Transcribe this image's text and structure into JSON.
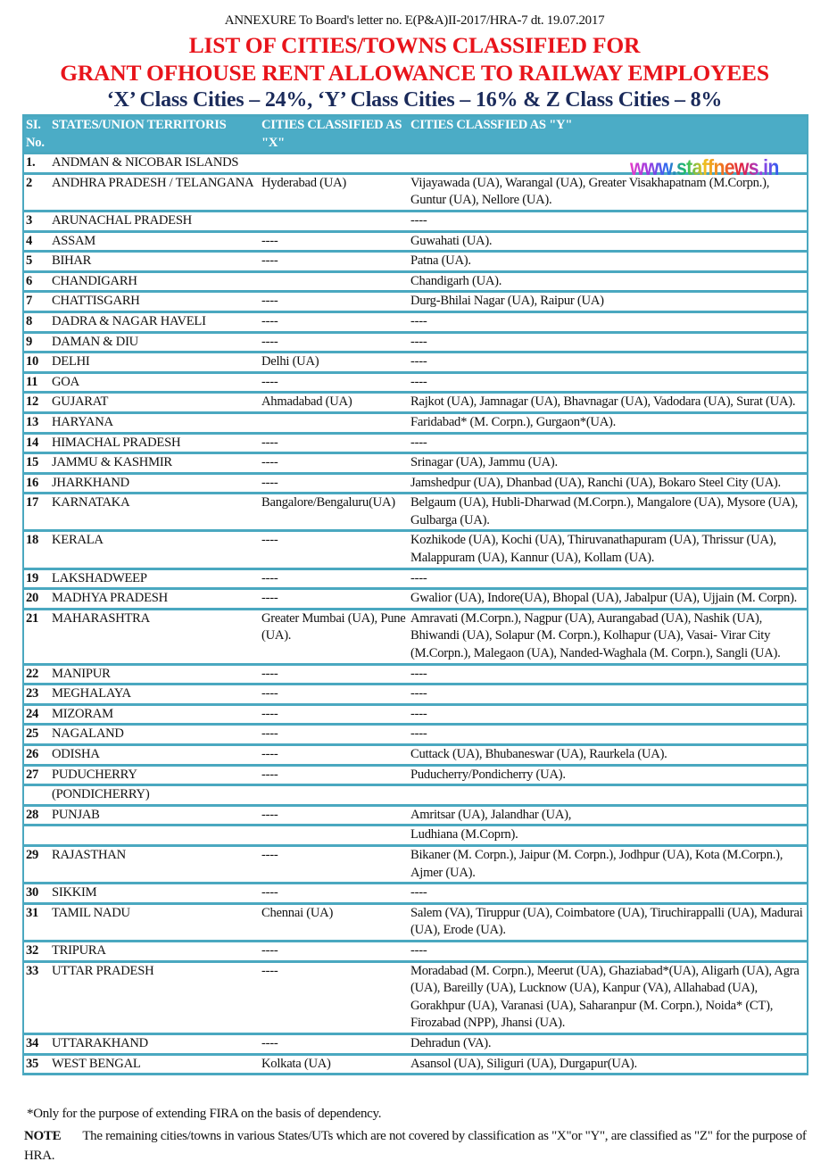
{
  "header": {
    "annexure": "ANNEXURE To Board's letter no. E(P&A)II-2017/HRA-7 dt. 19.07.2017",
    "title_line1": "LIST OF CITIES/TOWNS CLASSIFIED FOR",
    "title_line2": "GRANT OFHOUSE RENT ALLOWANCE TO RAILWAY EMPLOYEES",
    "subtitle": "‘X’ Class Cities – 24%, ‘Y’ Class Cities – 16% & Z Class Cities – 8%"
  },
  "watermark": "www.staffnews.in",
  "table": {
    "columns": [
      "SI. No.",
      "STATES/UNION TERRITORIS",
      "CITIES CLASSIFIED AS \"X\"",
      "CITIES CLASSFIED AS \"Y\""
    ],
    "rows": [
      {
        "no": "1.",
        "state": "ANDMAN & NICOBAR ISLANDS",
        "x": "",
        "y": ""
      },
      {
        "no": "2",
        "state": "ANDHRA PRADESH / TELANGANA",
        "x": "Hyderabad (UA)",
        "y": "Vijayawada (UA), Warangal (UA), Greater Visakhapatnam (M.Corpn.), Guntur (UA), Nellore (UA)."
      },
      {
        "no": "3",
        "state": "ARUNACHAL PRADESH",
        "x": "",
        "y": "----"
      },
      {
        "no": "4",
        "state": "ASSAM",
        "x": "----",
        "y": "Guwahati (UA)."
      },
      {
        "no": "5",
        "state": "BIHAR",
        "x": "----",
        "y": "Patna (UA)."
      },
      {
        "no": "6",
        "state": "CHANDIGARH",
        "x": "",
        "y": "Chandigarh (UA)."
      },
      {
        "no": "7",
        "state": "CHATTISGARH",
        "x": "----",
        "y": "Durg-Bhilai Nagar (UA), Raipur (UA)"
      },
      {
        "no": "8",
        "state": "DADRA & NAGAR HAVELI",
        "x": "----",
        "y": "----"
      },
      {
        "no": "9",
        "state": "DAMAN & DIU",
        "x": "----",
        "y": "----"
      },
      {
        "no": "10",
        "state": "DELHI",
        "x": "Delhi (UA)",
        "y": "----"
      },
      {
        "no": "11",
        "state": "GOA",
        "x": "----",
        "y": "----"
      },
      {
        "no": "12",
        "state": "GUJARAT",
        "x": "Ahmadabad (UA)",
        "y": "Rajkot (UA), Jamnagar (UA), Bhavnagar (UA), Vadodara (UA), Surat (UA)."
      },
      {
        "no": "13",
        "state": "HARYANA",
        "x": "",
        "y": "Faridabad* (M. Corpn.), Gurgaon*(UA)."
      },
      {
        "no": "14",
        "state": "HIMACHAL PRADESH",
        "x": "----",
        "y": "----"
      },
      {
        "no": "15",
        "state": "JAMMU & KASHMIR",
        "x": "----",
        "y": "Srinagar (UA), Jammu (UA)."
      },
      {
        "no": "16",
        "state": "JHARKHAND",
        "x": "----",
        "y": "Jamshedpur (UA), Dhanbad (UA), Ranchi (UA), Bokaro Steel City (UA)."
      },
      {
        "no": "17",
        "state": "KARNATAKA",
        "x": "Bangalore/Bengaluru(UA)",
        "y": "Belgaum (UA), Hubli-Dharwad (M.Corpn.), Mangalore (UA), Mysore (UA), Gulbarga (UA)."
      },
      {
        "no": "18",
        "state": "KERALA",
        "x": "----",
        "y": "Kozhikode (UA), Kochi (UA), Thiruvanathapuram (UA), Thrissur (UA), Malappuram (UA), Kannur (UA), Kollam (UA)."
      },
      {
        "no": "19",
        "state": "LAKSHADWEEP",
        "x": "----",
        "y": "----"
      },
      {
        "no": "20",
        "state": "MADHYA PRADESH",
        "x": "----",
        "y": "Gwalior (UA), Indore(UA), Bhopal (UA), Jabalpur (UA), Ujjain (M. Corpn)."
      },
      {
        "no": "21",
        "state": "MAHARASHTRA",
        "x": "Greater Mumbai (UA), Pune (UA).",
        "y": "Amravati (M.Corpn.), Nagpur (UA), Aurangabad (UA), Nashik (UA), Bhiwandi (UA), Solapur (M. Corpn.), Kolhapur (UA), Vasai- Virar City (M.Corpn.), Malegaon (UA), Nanded-Waghala (M. Corpn.), Sangli (UA)."
      },
      {
        "no": "22",
        "state": "MANIPUR",
        "x": "----",
        "y": "----"
      },
      {
        "no": "23",
        "state": "MEGHALAYA",
        "x": "----",
        "y": "----"
      },
      {
        "no": "24",
        "state": "MIZORAM",
        "x": "----",
        "y": "----"
      },
      {
        "no": "25",
        "state": "NAGALAND",
        "x": "----",
        "y": "----"
      },
      {
        "no": "26",
        "state": "ODISHA",
        "x": "----",
        "y": "Cuttack (UA), Bhubaneswar (UA), Raurkela (UA)."
      },
      {
        "no": "27",
        "state": "PUDUCHERRY",
        "x": "----",
        "y": "Puducherry/Pondicherry (UA)."
      },
      {
        "no": "",
        "state": "(PONDICHERRY)",
        "x": "",
        "y": ""
      },
      {
        "no": "28",
        "state": "PUNJAB",
        "x": "----",
        "y": "Amritsar (UA), Jalandhar (UA),"
      },
      {
        "no": "",
        "state": "",
        "x": "",
        "y": "Ludhiana (M.Coprn)."
      },
      {
        "no": "29",
        "state": "RAJASTHAN",
        "x": "----",
        "y": "Bikaner (M. Corpn.), Jaipur (M. Corpn.), Jodhpur (UA), Kota (M.Corpn.), Ajmer (UA)."
      },
      {
        "no": "30",
        "state": "SIKKIM",
        "x": "----",
        "y": "----"
      },
      {
        "no": "31",
        "state": "TAMIL NADU",
        "x": "Chennai (UA)",
        "y": "Salem (VA), Tiruppur (UA), Coimbatore (UA), Tiruchirappalli (UA), Madurai (UA), Erode (UA)."
      },
      {
        "no": "32",
        "state": "TRIPURA",
        "x": "----",
        "y": "----"
      },
      {
        "no": "33",
        "state": "UTTAR PRADESH",
        "x": "----",
        "y": "Moradabad (M. Corpn.), Meerut (UA), Ghaziabad*(UA), Aligarh (UA), Agra (UA), Bareilly (UA), Lucknow (UA), Kanpur (VA), Allahabad (UA), Gorakhpur (UA), Varanasi (UA), Saharanpur (M. Corpn.), Noida* (CT), Firozabad (NPP), Jhansi (UA)."
      },
      {
        "no": "34",
        "state": "UTTARAKHAND",
        "x": "----",
        "y": "Dehradun (VA)."
      },
      {
        "no": "35",
        "state": "WEST BENGAL",
        "x": "Kolkata (UA)",
        "y": "Asansol (UA), Siliguri (UA), Durgapur(UA)."
      }
    ]
  },
  "footer": {
    "footnote": "*Only for the purpose of extending FIRA on the basis of dependency.",
    "note_label": "NOTE",
    "note_text": "The remaining cities/towns in various States/UTs which are not covered by classification as \"X\"or \"Y\", are classified as \"Z\" for the purpose of HRA."
  },
  "colors": {
    "title_red": "#e8141b",
    "subtitle_navy": "#1a2a5a",
    "table_teal": "#4bacc6"
  }
}
